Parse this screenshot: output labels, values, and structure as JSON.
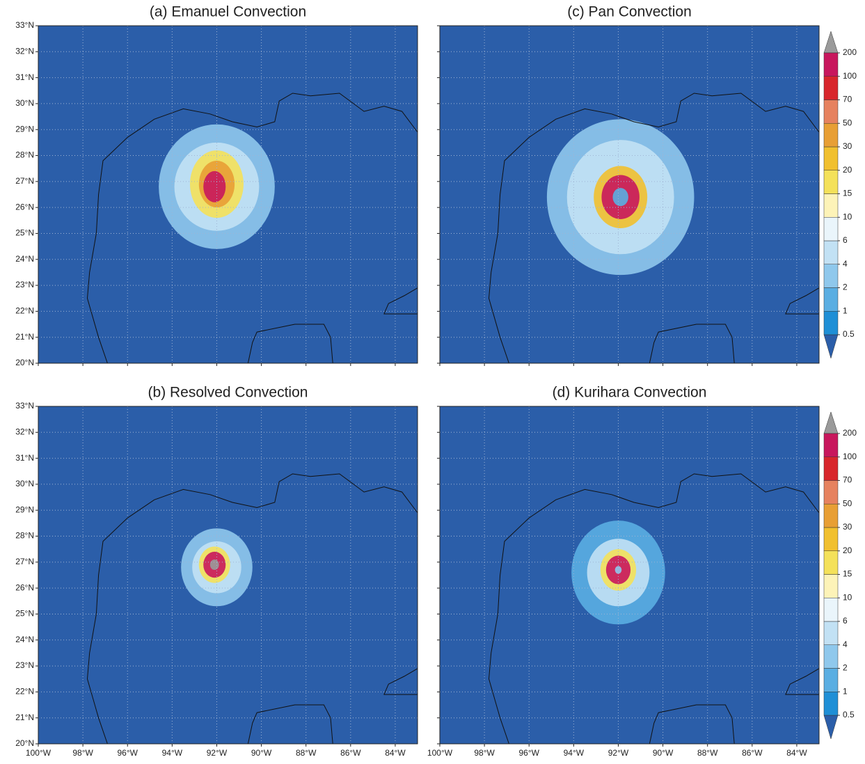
{
  "panels": [
    {
      "title": "(a) Emanuel Convection"
    },
    {
      "title": "(c) Pan Convection"
    },
    {
      "title": "(b) Resolved Convection"
    },
    {
      "title": "(d) Kurihara Convection"
    }
  ],
  "lonlim": [
    -100,
    -83
  ],
  "latlim": [
    20,
    33
  ],
  "lon_ticks": [
    {
      "value": -100,
      "label": "100°W"
    },
    {
      "value": -98,
      "label": "98°W"
    },
    {
      "value": -96,
      "label": "96°W"
    },
    {
      "value": -94,
      "label": "94°W"
    },
    {
      "value": -92,
      "label": "92°W"
    },
    {
      "value": -90,
      "label": "90°W"
    },
    {
      "value": -88,
      "label": "88°W"
    },
    {
      "value": -86,
      "label": "86°W"
    },
    {
      "value": -84,
      "label": "84°W"
    }
  ],
  "lat_ticks": [
    {
      "value": 20,
      "label": "20°N"
    },
    {
      "value": 21,
      "label": "21°N"
    },
    {
      "value": 22,
      "label": "22°N"
    },
    {
      "value": 23,
      "label": "23°N"
    },
    {
      "value": 24,
      "label": "24°N"
    },
    {
      "value": 25,
      "label": "25°N"
    },
    {
      "value": 26,
      "label": "26°N"
    },
    {
      "value": 27,
      "label": "27°N"
    },
    {
      "value": 28,
      "label": "28°N"
    },
    {
      "value": 29,
      "label": "29°N"
    },
    {
      "value": 30,
      "label": "30°N"
    },
    {
      "value": 31,
      "label": "31°N"
    },
    {
      "value": 32,
      "label": "32°N"
    },
    {
      "value": 33,
      "label": "33°N"
    }
  ],
  "colorbar": {
    "levels": [
      0.5,
      1,
      2,
      4,
      6,
      10,
      15,
      20,
      30,
      50,
      70,
      100,
      200
    ],
    "colors": [
      "#2b5ea9",
      "#1f8fd6",
      "#5aaee2",
      "#8fc8ec",
      "#c2e1f4",
      "#eaf5fb",
      "#fdf3b8",
      "#f4e15a",
      "#f1c02f",
      "#e89f35",
      "#e6825f",
      "#d8262c",
      "#c8175d",
      "#9a9a9a"
    ]
  }
}
